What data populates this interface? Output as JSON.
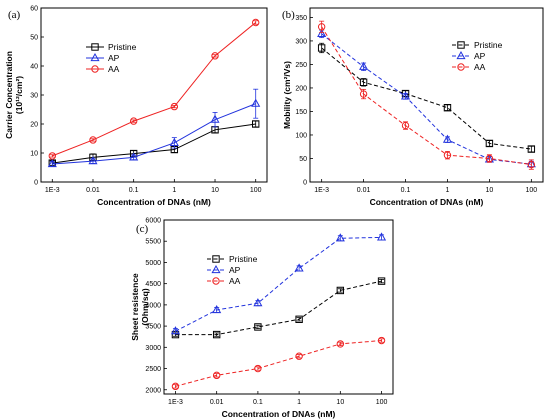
{
  "chart_data": [
    {
      "type": "line",
      "panel_label": "(a)",
      "xlabel": "Concentration of DNAs (nM)",
      "ylabel_line1": "Carrier Concentration",
      "ylabel_line2": "(10¹²/cm²)",
      "categories": [
        "1E-3",
        "0.01",
        "0.1",
        "1",
        "10",
        "100"
      ],
      "yticks": [
        "0",
        "10",
        "20",
        "30",
        "40",
        "50",
        "60"
      ],
      "ylim": [
        0,
        60
      ],
      "legend_position": "top-left",
      "grid": false,
      "series": [
        {
          "name": "Pristine",
          "color": "#000000",
          "dashed": false,
          "marker": "square",
          "values": [
            6.5,
            8.5,
            9.8,
            11.2,
            18,
            20
          ],
          "err": [
            0.8,
            1.2,
            1,
            1,
            1,
            1
          ]
        },
        {
          "name": "AP",
          "color": "#2233dd",
          "dashed": false,
          "marker": "triangle",
          "values": [
            6.2,
            7.2,
            8.5,
            13.5,
            21.5,
            27
          ],
          "err": [
            0.8,
            0.8,
            0.8,
            1.8,
            2.5,
            5
          ]
        },
        {
          "name": "AA",
          "color": "#ee2222",
          "dashed": false,
          "marker": "circle",
          "values": [
            9,
            14.5,
            21,
            26,
            43.5,
            55
          ],
          "err": [
            0.4,
            0.4,
            0.4,
            0.4,
            0.4,
            0.6
          ]
        }
      ]
    },
    {
      "type": "line",
      "panel_label": "(b)",
      "xlabel": "Concentration of DNAs (nM)",
      "ylabel": "Mobility (cm²/Vs)",
      "categories": [
        "1E-3",
        "0.01",
        "0.1",
        "1",
        "10",
        "100"
      ],
      "yticks": [
        "0",
        "50",
        "100",
        "150",
        "200",
        "250",
        "300",
        "350"
      ],
      "ylim": [
        0,
        370
      ],
      "legend_position": "top-right",
      "grid": false,
      "series": [
        {
          "name": "Pristine",
          "color": "#000000",
          "dashed": true,
          "marker": "square",
          "values": [
            285,
            212,
            188,
            158,
            82,
            70
          ],
          "err": [
            10,
            8,
            6,
            6,
            6,
            6
          ]
        },
        {
          "name": "AP",
          "color": "#2233dd",
          "dashed": true,
          "marker": "triangle",
          "values": [
            315,
            245,
            182,
            90,
            48,
            38
          ],
          "err": [
            8,
            8,
            6,
            6,
            6,
            6
          ]
        },
        {
          "name": "AA",
          "color": "#ee2222",
          "dashed": true,
          "marker": "circle",
          "values": [
            330,
            187,
            120,
            57,
            50,
            37
          ],
          "err": [
            12,
            10,
            8,
            8,
            8,
            10
          ]
        }
      ]
    },
    {
      "type": "line",
      "panel_label": "(c)",
      "xlabel": "Concentration of DNAs (nM)",
      "ylabel_line1": "Sheet resistence",
      "ylabel_line2": "(Ohm/sq)",
      "categories": [
        "1E-3",
        "0.01",
        "0.1",
        "1",
        "10",
        "100"
      ],
      "yticks": [
        "2000",
        "2500",
        "3000",
        "3500",
        "4000",
        "4500",
        "5000",
        "5500",
        "6000"
      ],
      "ylim": [
        1900,
        6000
      ],
      "legend_position": "top-left",
      "grid": false,
      "series": [
        {
          "name": "Pristine",
          "color": "#000000",
          "dashed": true,
          "marker": "square",
          "values": [
            3300,
            3300,
            3480,
            3660,
            4340,
            4560
          ],
          "err": [
            40,
            40,
            40,
            40,
            40,
            40
          ]
        },
        {
          "name": "AP",
          "color": "#2233dd",
          "dashed": true,
          "marker": "triangle",
          "values": [
            3380,
            3880,
            4040,
            4860,
            5570,
            5590
          ],
          "err": [
            60,
            60,
            60,
            60,
            60,
            60
          ]
        },
        {
          "name": "AA",
          "color": "#ee2222",
          "dashed": true,
          "marker": "circle",
          "values": [
            2080,
            2340,
            2500,
            2790,
            3080,
            3160
          ],
          "err": [
            40,
            40,
            40,
            40,
            40,
            40
          ]
        }
      ]
    }
  ]
}
